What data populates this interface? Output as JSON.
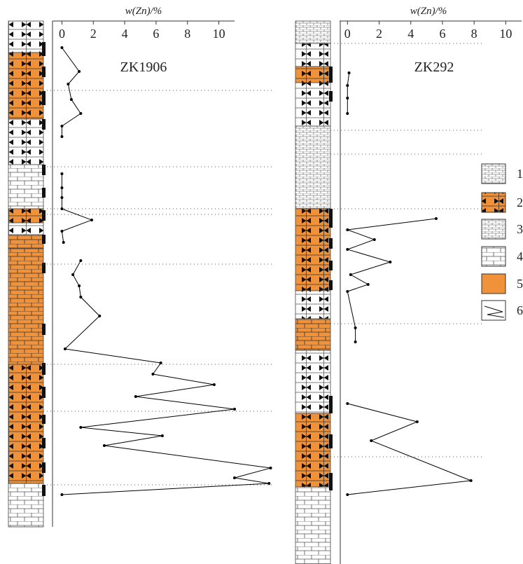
{
  "chart_data": [
    {
      "type": "line",
      "title": "w(Zn)/%",
      "label": "ZK1906",
      "values": [
        0,
        1.1,
        0.4,
        0.6,
        1.2,
        0,
        0,
        null,
        0,
        0,
        0,
        0,
        1.9,
        0,
        0.1,
        null,
        1.2,
        0.7,
        1.1,
        1.2,
        2.4,
        0.2,
        6.3,
        5.8,
        9.7,
        4.7,
        11.0,
        1.2,
        6.4,
        2.7,
        13.3,
        11.0,
        13.2,
        0
      ],
      "depth": [
        38,
        72,
        90,
        112,
        132,
        150,
        165,
        null,
        218,
        238,
        252,
        268,
        284,
        300,
        316,
        null,
        342,
        362,
        378,
        394,
        421,
        468,
        488,
        504,
        519,
        536,
        554,
        580,
        592,
        606,
        638,
        652,
        660,
        676
      ],
      "color": "#000000",
      "xlim": [
        -0.6,
        11
      ],
      "xticks": [
        0,
        2,
        4,
        6,
        8,
        10
      ],
      "ylim": [
        0,
        722
      ]
    },
    {
      "type": "line",
      "title": "w(Zn)/%",
      "label": "ZK292",
      "values": [
        0.1,
        0,
        0,
        0,
        null,
        5.6,
        0,
        1.7,
        0,
        2.7,
        0.2,
        1.3,
        0,
        0.5,
        0.5,
        null,
        0,
        4.4,
        1.5,
        7.8,
        0
      ],
      "depth": [
        74,
        92,
        110,
        132,
        null,
        282,
        298,
        312,
        326,
        344,
        362,
        376,
        386,
        438,
        458,
        null,
        546,
        572,
        599,
        656,
        676
      ],
      "color": "#000000",
      "xlim": [
        -0.5,
        11
      ],
      "xticks": [
        0,
        2,
        4,
        6,
        8,
        10
      ],
      "ylim": [
        0,
        775
      ]
    }
  ],
  "legend": {
    "labels": [
      "1",
      "2",
      "3",
      "4",
      "5",
      "6"
    ]
  }
}
